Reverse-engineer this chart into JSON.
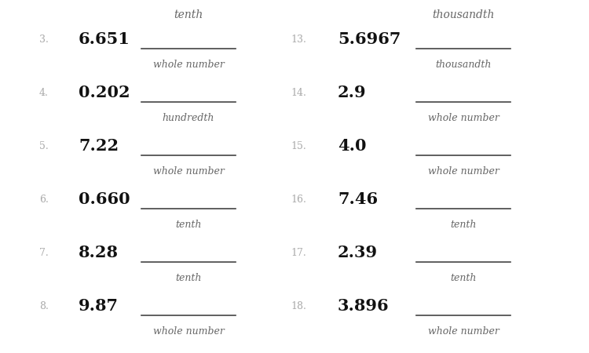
{
  "background_color": "#ffffff",
  "number_color": "#111111",
  "label_color": "#666666",
  "index_color": "#aaaaaa",
  "line_color": "#444444",
  "left_items": [
    {
      "num": "3.",
      "value": "6.651",
      "label": "whole number"
    },
    {
      "num": "4.",
      "value": "0.202",
      "label": "hundredth"
    },
    {
      "num": "5.",
      "value": "7.22",
      "label": "whole number"
    },
    {
      "num": "6.",
      "value": "0.660",
      "label": "tenth"
    },
    {
      "num": "7.",
      "value": "8.28",
      "label": "tenth"
    },
    {
      "num": "8.",
      "value": "9.87",
      "label": "whole number"
    }
  ],
  "right_items": [
    {
      "num": "13.",
      "value": "5.6967",
      "label": "thousandth"
    },
    {
      "num": "14.",
      "value": "2.9",
      "label": "whole number"
    },
    {
      "num": "15.",
      "value": "4.0",
      "label": "whole number"
    },
    {
      "num": "16.",
      "value": "7.46",
      "label": "tenth"
    },
    {
      "num": "17.",
      "value": "2.39",
      "label": "tenth"
    },
    {
      "num": "18.",
      "value": "3.896",
      "label": "whole number"
    }
  ],
  "top_left_label": "tenth",
  "top_right_label": "thousandth"
}
